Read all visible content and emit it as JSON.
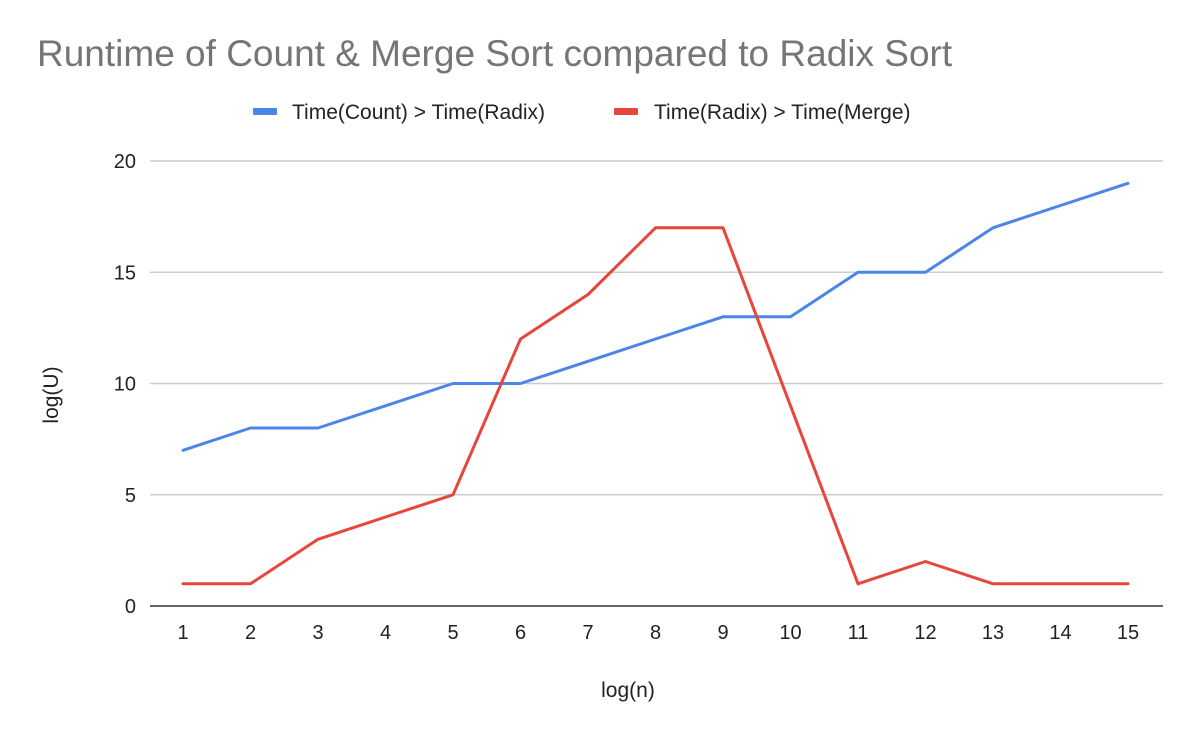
{
  "chart_data": {
    "type": "line",
    "title": "Runtime of Count & Merge Sort compared to Radix Sort",
    "xlabel": "log(n)",
    "ylabel": "log(U)",
    "x": [
      1,
      2,
      3,
      4,
      5,
      6,
      7,
      8,
      9,
      10,
      11,
      12,
      13,
      14,
      15
    ],
    "ylim": [
      0,
      20
    ],
    "yticks": [
      0,
      5,
      10,
      15,
      20
    ],
    "grid": true,
    "legend_position": "top",
    "series": [
      {
        "name": "Time(Count) > Time(Radix)",
        "color": "#4a86e8",
        "values": [
          7,
          8,
          8,
          9,
          10,
          10,
          11,
          12,
          13,
          13,
          15,
          15,
          17,
          18,
          19
        ]
      },
      {
        "name": "Time(Radix) > Time(Merge)",
        "color": "#e8453c",
        "values": [
          1,
          1,
          3,
          4,
          5,
          12,
          14,
          17,
          17,
          9,
          1,
          2,
          1,
          1,
          1
        ]
      }
    ]
  }
}
